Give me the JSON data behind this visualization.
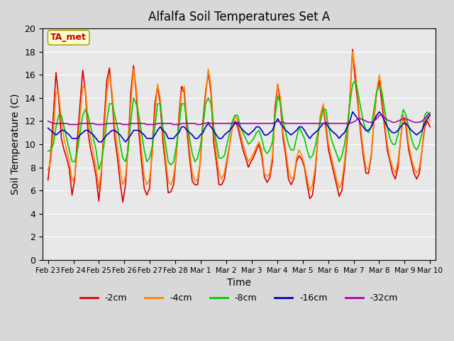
{
  "title": "Alfalfa Soil Temperatures Set A",
  "xlabel": "Time",
  "ylabel": "Soil Temperature (C)",
  "ylim": [
    0,
    20
  ],
  "yticks": [
    0,
    2,
    4,
    6,
    8,
    10,
    12,
    14,
    16,
    18,
    20
  ],
  "annotation_label": "TA_met",
  "annotation_color": "#cc0000",
  "annotation_bg": "#ffffcc",
  "colors": {
    "-2cm": "#dd0000",
    "-4cm": "#ff8800",
    "-8cm": "#00cc00",
    "-16cm": "#0000cc",
    "-32cm": "#aa00aa"
  },
  "legend_labels": [
    "-2cm",
    "-4cm",
    "-8cm",
    "-16cm",
    "-32cm"
  ],
  "tick_labels": [
    "Feb 23",
    "Feb 24",
    "Feb 25",
    "Feb 26",
    "Feb 27",
    "Feb 28",
    "Mar 1",
    "Mar 2",
    "Mar 3",
    "Mar 4",
    "Mar 5",
    "Mar 6",
    "Mar 7",
    "Mar 8",
    "Mar 9",
    "Mar 10"
  ],
  "series": {
    "-2cm": [
      6.9,
      9.0,
      12.5,
      16.2,
      14.0,
      10.5,
      9.5,
      8.8,
      7.8,
      5.6,
      7.0,
      10.5,
      13.5,
      16.4,
      14.5,
      11.0,
      9.5,
      8.5,
      7.2,
      5.1,
      7.5,
      12.0,
      15.5,
      16.6,
      14.0,
      10.5,
      8.8,
      6.7,
      5.0,
      6.5,
      10.0,
      14.5,
      16.8,
      14.5,
      11.0,
      8.5,
      6.2,
      5.6,
      6.2,
      9.5,
      13.5,
      15.0,
      13.5,
      10.2,
      8.2,
      5.8,
      5.9,
      6.5,
      9.0,
      12.5,
      15.0,
      14.5,
      11.2,
      8.8,
      6.8,
      6.5,
      6.5,
      8.5,
      12.0,
      14.5,
      16.2,
      14.5,
      10.2,
      8.5,
      6.5,
      6.5,
      7.0,
      8.5,
      10.0,
      11.5,
      12.0,
      11.5,
      10.5,
      9.5,
      8.8,
      8.0,
      8.5,
      8.9,
      9.5,
      10.0,
      9.0,
      7.2,
      6.7,
      7.1,
      8.5,
      13.2,
      15.2,
      13.5,
      10.5,
      9.0,
      7.0,
      6.5,
      7.0,
      8.5,
      9.0,
      8.7,
      8.0,
      6.5,
      5.3,
      5.6,
      7.5,
      10.5,
      12.5,
      13.3,
      11.5,
      9.5,
      8.5,
      7.5,
      6.5,
      5.5,
      6.0,
      8.0,
      10.5,
      14.0,
      18.2,
      15.5,
      13.5,
      11.0,
      9.0,
      7.5,
      7.5,
      9.0,
      12.0,
      14.5,
      15.5,
      13.5,
      11.5,
      9.5,
      8.5,
      7.5,
      7.0,
      8.0,
      10.5,
      12.5,
      11.5,
      9.5,
      8.5,
      7.5,
      7.0,
      7.5,
      9.5,
      11.5,
      12.0,
      11.5
    ],
    "-4cm": [
      7.8,
      8.5,
      11.0,
      14.5,
      14.5,
      12.0,
      10.5,
      9.5,
      8.5,
      6.8,
      7.2,
      9.5,
      12.5,
      15.0,
      14.8,
      12.0,
      10.5,
      9.2,
      8.0,
      6.2,
      7.8,
      11.0,
      14.5,
      16.0,
      14.5,
      11.5,
      9.8,
      7.8,
      6.5,
      7.2,
      9.5,
      13.5,
      16.5,
      15.0,
      12.0,
      9.5,
      7.2,
      6.5,
      7.0,
      9.0,
      12.5,
      15.2,
      14.0,
      11.0,
      8.8,
      6.8,
      6.5,
      7.2,
      9.0,
      12.0,
      14.5,
      15.0,
      12.0,
      9.5,
      7.5,
      6.8,
      7.0,
      8.5,
      11.5,
      14.0,
      16.5,
      15.0,
      11.5,
      9.2,
      7.5,
      7.0,
      7.5,
      8.8,
      10.0,
      11.5,
      12.5,
      12.0,
      11.0,
      10.0,
      9.2,
      8.5,
      8.8,
      9.2,
      9.8,
      10.2,
      9.5,
      7.5,
      7.2,
      7.5,
      9.0,
      12.5,
      15.2,
      14.0,
      11.0,
      9.5,
      7.8,
      7.0,
      7.2,
      8.8,
      9.5,
      9.0,
      8.2,
      7.0,
      6.0,
      6.5,
      8.0,
      10.5,
      12.5,
      13.5,
      12.0,
      10.0,
      9.0,
      8.0,
      7.0,
      6.2,
      6.8,
      8.5,
      11.0,
      14.0,
      18.0,
      16.5,
      14.0,
      11.5,
      9.5,
      8.0,
      7.8,
      9.2,
      12.0,
      14.5,
      16.0,
      14.5,
      12.0,
      10.0,
      8.8,
      8.0,
      7.5,
      8.5,
      10.5,
      12.5,
      12.0,
      10.0,
      8.8,
      8.0,
      7.5,
      8.0,
      9.5,
      12.0,
      12.5,
      12.0
    ],
    "-8cm": [
      9.4,
      9.5,
      10.0,
      11.5,
      12.5,
      12.5,
      11.5,
      10.5,
      9.5,
      8.5,
      8.5,
      9.5,
      11.0,
      12.5,
      13.0,
      12.5,
      11.5,
      10.5,
      9.5,
      7.8,
      8.5,
      10.0,
      12.0,
      13.5,
      13.5,
      12.5,
      11.5,
      10.0,
      8.8,
      8.5,
      9.5,
      12.0,
      14.0,
      13.5,
      12.5,
      11.0,
      9.5,
      8.5,
      8.8,
      9.8,
      11.5,
      13.5,
      13.5,
      11.5,
      10.0,
      8.5,
      8.2,
      8.5,
      9.8,
      11.5,
      13.5,
      13.5,
      12.0,
      10.5,
      9.2,
      8.5,
      8.8,
      9.8,
      11.5,
      13.5,
      14.0,
      13.5,
      11.5,
      10.2,
      8.8,
      8.8,
      9.0,
      10.0,
      11.0,
      12.0,
      12.5,
      12.5,
      11.5,
      11.0,
      10.5,
      10.0,
      10.2,
      10.5,
      11.0,
      11.2,
      10.5,
      9.5,
      9.2,
      9.5,
      10.2,
      12.5,
      14.2,
      13.5,
      12.0,
      11.0,
      10.0,
      9.5,
      9.5,
      10.5,
      11.5,
      11.0,
      10.5,
      9.5,
      8.8,
      9.0,
      9.8,
      11.0,
      12.0,
      13.0,
      13.0,
      11.5,
      10.5,
      9.8,
      9.2,
      8.5,
      9.0,
      10.0,
      11.5,
      13.5,
      15.2,
      15.5,
      14.5,
      13.2,
      12.0,
      11.2,
      11.0,
      11.5,
      13.0,
      14.5,
      15.0,
      14.5,
      13.0,
      11.5,
      10.5,
      10.0,
      10.0,
      10.8,
      12.0,
      13.0,
      12.5,
      11.5,
      10.5,
      9.8,
      9.5,
      10.0,
      11.0,
      12.5,
      12.8,
      12.5
    ],
    "-16cm": [
      11.4,
      11.2,
      11.0,
      10.8,
      11.0,
      11.2,
      11.2,
      11.0,
      10.8,
      10.5,
      10.5,
      10.5,
      10.8,
      11.0,
      11.2,
      11.2,
      11.0,
      10.8,
      10.5,
      10.2,
      10.2,
      10.5,
      10.8,
      11.0,
      11.2,
      11.2,
      11.0,
      10.8,
      10.5,
      10.2,
      10.5,
      10.8,
      11.2,
      11.2,
      11.2,
      11.0,
      10.8,
      10.5,
      10.5,
      10.5,
      10.8,
      11.2,
      11.5,
      11.2,
      11.0,
      10.5,
      10.5,
      10.5,
      10.8,
      11.0,
      11.5,
      11.5,
      11.2,
      11.0,
      10.8,
      10.5,
      10.5,
      10.8,
      11.0,
      11.5,
      11.8,
      11.5,
      11.2,
      10.8,
      10.5,
      10.5,
      10.8,
      11.0,
      11.2,
      11.5,
      11.8,
      11.8,
      11.5,
      11.2,
      11.0,
      10.8,
      11.0,
      11.2,
      11.5,
      11.5,
      11.2,
      10.8,
      10.8,
      11.0,
      11.2,
      11.8,
      12.2,
      11.8,
      11.5,
      11.2,
      11.0,
      10.8,
      11.0,
      11.2,
      11.5,
      11.5,
      11.2,
      10.8,
      10.5,
      10.8,
      11.0,
      11.2,
      11.5,
      11.8,
      11.8,
      11.5,
      11.2,
      11.0,
      10.8,
      10.5,
      10.8,
      11.0,
      11.5,
      12.0,
      12.8,
      12.5,
      12.2,
      11.8,
      11.5,
      11.2,
      11.2,
      11.5,
      12.0,
      12.5,
      12.8,
      12.5,
      12.0,
      11.5,
      11.2,
      11.0,
      11.0,
      11.2,
      11.5,
      11.8,
      11.8,
      11.5,
      11.2,
      11.0,
      10.8,
      11.0,
      11.2,
      11.8,
      12.2,
      12.5
    ],
    "-32cm": [
      12.0,
      11.9,
      11.8,
      11.8,
      11.8,
      11.8,
      11.8,
      11.8,
      11.7,
      11.7,
      11.7,
      11.7,
      11.8,
      11.8,
      11.8,
      11.8,
      11.8,
      11.8,
      11.7,
      11.7,
      11.7,
      11.7,
      11.8,
      11.8,
      11.8,
      11.8,
      11.8,
      11.8,
      11.7,
      11.7,
      11.7,
      11.8,
      11.8,
      11.8,
      11.8,
      11.8,
      11.8,
      11.7,
      11.7,
      11.7,
      11.7,
      11.8,
      11.8,
      11.8,
      11.8,
      11.8,
      11.8,
      11.7,
      11.7,
      11.7,
      11.8,
      11.8,
      11.8,
      11.8,
      11.8,
      11.8,
      11.7,
      11.7,
      11.8,
      11.8,
      11.9,
      11.8,
      11.8,
      11.8,
      11.8,
      11.8,
      11.8,
      11.8,
      11.8,
      11.8,
      11.9,
      11.9,
      11.8,
      11.8,
      11.8,
      11.8,
      11.8,
      11.8,
      11.8,
      11.8,
      11.8,
      11.8,
      11.8,
      11.8,
      11.8,
      11.9,
      12.0,
      11.9,
      11.9,
      11.8,
      11.8,
      11.8,
      11.8,
      11.8,
      11.8,
      11.8,
      11.8,
      11.8,
      11.8,
      11.8,
      11.8,
      11.8,
      11.8,
      11.8,
      11.9,
      11.8,
      11.8,
      11.8,
      11.8,
      11.8,
      11.8,
      11.8,
      11.8,
      11.8,
      11.9,
      12.0,
      12.2,
      12.2,
      12.1,
      12.0,
      11.9,
      11.9,
      12.0,
      12.2,
      12.5,
      12.5,
      12.3,
      12.1,
      12.0,
      11.9,
      11.9,
      12.0,
      12.1,
      12.2,
      12.2,
      12.1,
      12.0,
      11.9,
      11.9,
      11.9,
      12.0,
      12.2,
      12.5,
      12.7
    ]
  }
}
